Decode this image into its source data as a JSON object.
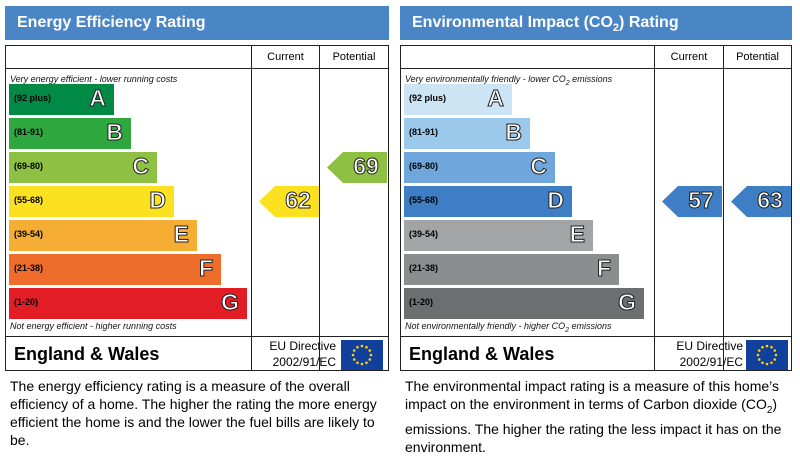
{
  "chart_data": [
    {
      "type": "bar",
      "title": "Energy Efficiency Rating",
      "columns": [
        "Current",
        "Potential"
      ],
      "top_note": "Very energy efficient - lower running costs",
      "bottom_note": "Not energy efficient - higher running costs",
      "bands": [
        {
          "range": "(92 plus)",
          "letter": "A",
          "color": "#008a45"
        },
        {
          "range": "(81-91)",
          "letter": "B",
          "color": "#2ea73e"
        },
        {
          "range": "(69-80)",
          "letter": "C",
          "color": "#8dc043"
        },
        {
          "range": "(55-68)",
          "letter": "D",
          "color": "#fbe120"
        },
        {
          "range": "(39-54)",
          "letter": "E",
          "color": "#f6ad33"
        },
        {
          "range": "(21-38)",
          "letter": "F",
          "color": "#ee6d2b"
        },
        {
          "range": "(1-20)",
          "letter": "G",
          "color": "#e31d26"
        }
      ],
      "current": 62,
      "potential": 69,
      "current_color": "#fbe120",
      "potential_color": "#8dc043",
      "footer": "England & Wales",
      "directive_line1": "EU Directive",
      "directive_line2": "2002/91/EC",
      "description": "The energy efficiency rating is a measure of the overall efficiency of a home. The higher the rating the more energy efficient the home is and the lower the fuel bills are likely to be."
    },
    {
      "type": "bar",
      "title": "Environmental Impact (CO2) Rating",
      "columns": [
        "Current",
        "Potential"
      ],
      "top_note": "Very environmentally friendly - lower CO2 emissions",
      "bottom_note": "Not environmentally friendly - higher CO2 emissions",
      "bands": [
        {
          "range": "(92 plus)",
          "letter": "A",
          "color": "#cde4f5"
        },
        {
          "range": "(81-91)",
          "letter": "B",
          "color": "#9bc9ec"
        },
        {
          "range": "(69-80)",
          "letter": "C",
          "color": "#6fa7dc"
        },
        {
          "range": "(55-68)",
          "letter": "D",
          "color": "#3d7ec4"
        },
        {
          "range": "(39-54)",
          "letter": "E",
          "color": "#a3a4a6"
        },
        {
          "range": "(21-38)",
          "letter": "F",
          "color": "#8c8d8f"
        },
        {
          "range": "(1-20)",
          "letter": "G",
          "color": "#6d6e70"
        }
      ],
      "current": 57,
      "potential": 63,
      "current_color": "#3d7ec4",
      "potential_color": "#3d7ec4",
      "footer": "England & Wales",
      "directive_line1": "EU Directive",
      "directive_line2": "2002/91/EC",
      "description": "The environmental impact rating is a measure of this home's impact on the environment in terms of Carbon dioxide (CO2) emissions. The higher the rating the less impact it has on the environment."
    }
  ]
}
